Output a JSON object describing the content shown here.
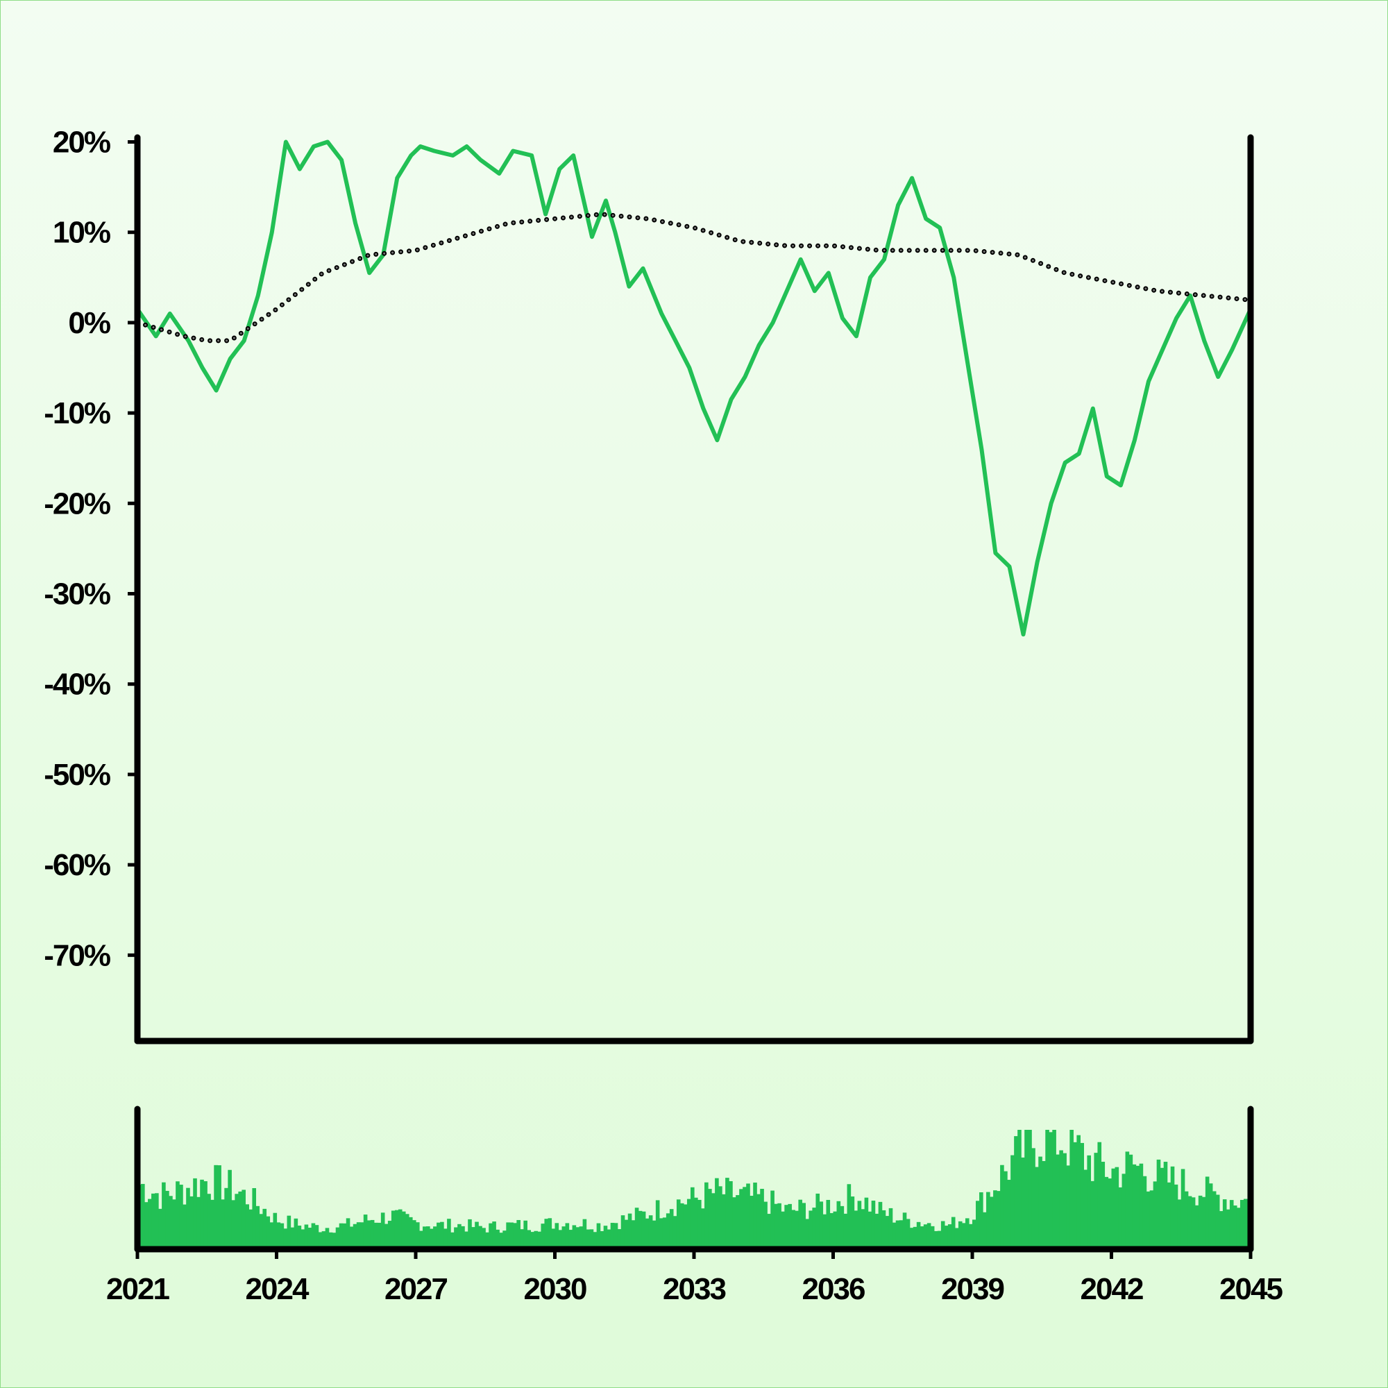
{
  "chart_data": {
    "type": "line",
    "title": "",
    "xlabel": "",
    "ylabel": "",
    "x_ticks": [
      "2021",
      "2024",
      "2027",
      "2030",
      "2033",
      "2036",
      "2039",
      "2042",
      "2045"
    ],
    "y_ticks": [
      "20%",
      "10%",
      "0%",
      "-10%",
      "-20%",
      "-30%",
      "-40%",
      "-50%",
      "-60%",
      "-70%"
    ],
    "xlim": [
      2021,
      2045
    ],
    "ylim": [
      -79.5,
      20.5
    ],
    "colors": {
      "line": "#22c055",
      "trend": "#000000",
      "volume": "#22c055",
      "axis": "#000000"
    },
    "series": [
      {
        "style": "solid",
        "x": [
          2021.0,
          2021.4,
          2021.7,
          2022.1,
          2022.4,
          2022.7,
          2023.0,
          2023.3,
          2023.6,
          2023.9,
          2024.2,
          2024.5,
          2024.8,
          2025.1,
          2025.4,
          2025.7,
          2026.0,
          2026.3,
          2026.6,
          2026.9,
          2027.1,
          2027.4,
          2027.8,
          2028.1,
          2028.4,
          2028.8,
          2029.1,
          2029.5,
          2029.8,
          2030.1,
          2030.4,
          2030.8,
          2031.1,
          2031.3,
          2031.6,
          2031.9,
          2032.3,
          2032.6,
          2032.9,
          2033.2,
          2033.5,
          2033.8,
          2034.1,
          2034.4,
          2034.7,
          2035.0,
          2035.3,
          2035.6,
          2035.9,
          2036.2,
          2036.5,
          2036.8,
          2037.1,
          2037.4,
          2037.7,
          2038.0,
          2038.3,
          2038.6,
          2038.9,
          2039.2,
          2039.5,
          2039.8,
          2040.1,
          2040.4,
          2040.7,
          2041.0,
          2041.3,
          2041.6,
          2041.9,
          2042.2,
          2042.5,
          2042.8,
          2043.1,
          2043.4,
          2043.7,
          2044.0,
          2044.3,
          2044.6,
          2045.0
        ],
        "y": [
          1.5,
          -1.5,
          1.0,
          -2.0,
          -5.0,
          -7.5,
          -4.0,
          -2.0,
          3.0,
          10.0,
          20.0,
          17.0,
          19.5,
          20.0,
          18.0,
          11.0,
          5.5,
          7.5,
          16.0,
          18.5,
          19.5,
          19.0,
          18.5,
          19.5,
          18.0,
          16.5,
          19.0,
          18.5,
          12.0,
          17.0,
          18.5,
          9.5,
          13.5,
          10.0,
          4.0,
          6.0,
          1.0,
          -2.0,
          -5.0,
          -9.5,
          -13.0,
          -8.5,
          -6.0,
          -2.5,
          0.0,
          3.5,
          7.0,
          3.5,
          5.5,
          0.5,
          -1.5,
          5.0,
          7.0,
          13.0,
          16.0,
          11.5,
          10.5,
          5.0,
          -4.5,
          -14.0,
          -25.5,
          -27.0,
          -34.5,
          -26.5,
          -20.0,
          -15.5,
          -14.5,
          -9.5,
          -17.0,
          -18.0,
          -13.0,
          -6.5,
          -3.0,
          0.5,
          3.0,
          -2.0,
          -6.0,
          -3.0,
          1.5
        ]
      },
      {
        "style": "dotted",
        "x": [
          2021.0,
          2022.0,
          2022.5,
          2023.0,
          2024.0,
          2025.0,
          2026.0,
          2027.0,
          2028.0,
          2029.0,
          2030.0,
          2031.0,
          2032.0,
          2033.0,
          2034.0,
          2035.0,
          2036.0,
          2037.0,
          2038.0,
          2039.0,
          2040.0,
          2041.0,
          2042.0,
          2043.0,
          2044.0,
          2045.0
        ],
        "y": [
          0.0,
          -1.5,
          -2.0,
          -2.0,
          1.5,
          5.5,
          7.5,
          8.0,
          9.5,
          11.0,
          11.5,
          12.0,
          11.5,
          10.5,
          9.0,
          8.5,
          8.5,
          8.0,
          8.0,
          8.0,
          7.5,
          5.5,
          4.5,
          3.5,
          3.0,
          2.5
        ]
      }
    ],
    "volume": {
      "type": "bar",
      "x": [
        2021.0,
        2021.5,
        2022.0,
        2022.5,
        2023.0,
        2023.5,
        2024.0,
        2024.5,
        2025.0,
        2025.5,
        2026.0,
        2026.5,
        2027.0,
        2027.5,
        2028.0,
        2028.5,
        2029.0,
        2029.5,
        2030.0,
        2030.5,
        2031.0,
        2031.5,
        2032.0,
        2032.5,
        2033.0,
        2033.5,
        2034.0,
        2034.5,
        2035.0,
        2035.5,
        2036.0,
        2036.5,
        2037.0,
        2037.5,
        2038.0,
        2038.5,
        2039.0,
        2039.5,
        2040.0,
        2040.5,
        2041.0,
        2041.5,
        2042.0,
        2042.5,
        2043.0,
        2043.5,
        2044.0,
        2044.5,
        2045.0
      ],
      "values": [
        0.55,
        0.45,
        0.5,
        0.58,
        0.52,
        0.4,
        0.25,
        0.2,
        0.18,
        0.2,
        0.25,
        0.28,
        0.22,
        0.2,
        0.2,
        0.18,
        0.2,
        0.2,
        0.22,
        0.22,
        0.2,
        0.25,
        0.3,
        0.38,
        0.42,
        0.48,
        0.45,
        0.42,
        0.32,
        0.35,
        0.38,
        0.45,
        0.32,
        0.25,
        0.22,
        0.2,
        0.3,
        0.55,
        0.8,
        0.95,
        0.9,
        0.75,
        0.65,
        0.7,
        0.6,
        0.55,
        0.48,
        0.42,
        0.4
      ]
    },
    "grid": false,
    "legend": "none"
  }
}
